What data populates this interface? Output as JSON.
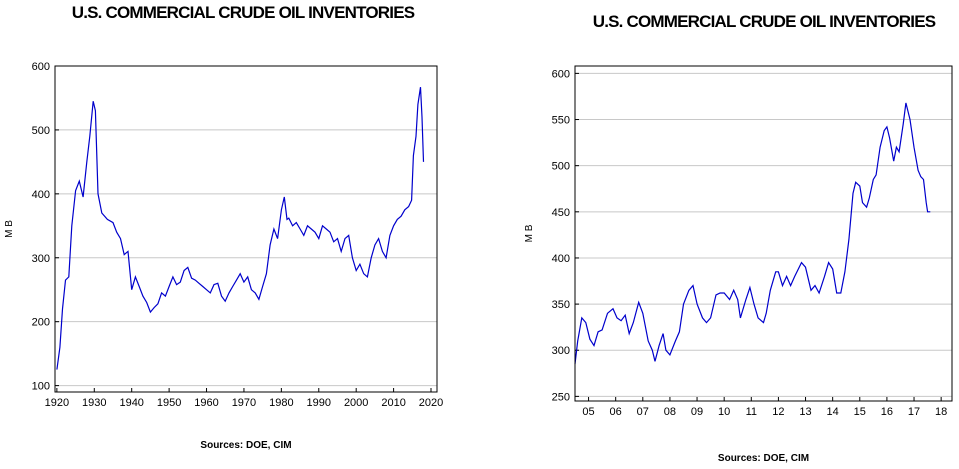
{
  "chart_data": [
    {
      "type": "line",
      "title": "U.S. COMMERCIAL CRUDE OIL INVENTORIES",
      "y_label": "M B",
      "source": "Sources:  DOE, CIM",
      "xlim": [
        1919.5,
        2021.6
      ],
      "xticks": [
        1920,
        1930,
        1940,
        1950,
        1960,
        1970,
        1980,
        1990,
        2000,
        2010,
        2020
      ],
      "ylim": [
        90,
        600
      ],
      "yticks": [
        100,
        200,
        300,
        400,
        500,
        600
      ],
      "grid": true,
      "series": [
        {
          "name": "Crude oil inventories",
          "color": "#0000cc",
          "x": [
            1920,
            1920.8,
            1921.5,
            1922.3,
            1923.2,
            1924,
            1925,
            1926,
            1927,
            1928,
            1928.8,
            1929.7,
            1930.3,
            1931,
            1932,
            1933.5,
            1935,
            1936,
            1937,
            1938,
            1939,
            1940,
            1941,
            1942,
            1943,
            1944,
            1945,
            1946,
            1947,
            1948,
            1949,
            1950,
            1951,
            1952,
            1953,
            1954,
            1955,
            1956,
            1957,
            1958,
            1959,
            1960,
            1961,
            1962,
            1963,
            1964,
            1965,
            1966,
            1967,
            1968,
            1969,
            1970,
            1971,
            1972,
            1973,
            1974,
            1975,
            1976,
            1977,
            1978,
            1979,
            1980,
            1980.8,
            1981.5,
            1982,
            1983,
            1984,
            1985,
            1986,
            1987,
            1988,
            1989,
            1990,
            1991,
            1992,
            1993,
            1994,
            1995,
            1996,
            1997,
            1998,
            1999,
            2000,
            2001,
            2002,
            2003,
            2004,
            2005,
            2006,
            2007,
            2008,
            2009,
            2010,
            2011,
            2012,
            2013,
            2014,
            2014.8,
            2015.3,
            2016,
            2016.5,
            2017.2,
            2017.6,
            2018
          ],
          "values": [
            125,
            160,
            220,
            265,
            270,
            350,
            405,
            420,
            395,
            450,
            490,
            545,
            530,
            400,
            370,
            360,
            355,
            340,
            330,
            305,
            310,
            250,
            270,
            255,
            240,
            230,
            215,
            222,
            228,
            245,
            240,
            255,
            270,
            258,
            262,
            280,
            285,
            268,
            265,
            260,
            255,
            250,
            245,
            258,
            260,
            240,
            232,
            245,
            255,
            265,
            275,
            262,
            270,
            250,
            245,
            235,
            255,
            275,
            320,
            345,
            330,
            375,
            395,
            360,
            362,
            350,
            355,
            345,
            335,
            350,
            345,
            340,
            330,
            350,
            345,
            340,
            325,
            330,
            310,
            330,
            335,
            300,
            280,
            290,
            275,
            270,
            300,
            320,
            330,
            310,
            300,
            335,
            350,
            360,
            365,
            375,
            380,
            390,
            460,
            490,
            540,
            567,
            520,
            450
          ]
        }
      ]
    },
    {
      "type": "line",
      "title": "U.S. COMMERCIAL CRUDE OIL INVENTORIES",
      "y_label": "M B",
      "source": "Sources:  DOE, CIM",
      "xlim": [
        2005,
        2018.9
      ],
      "xticks": [
        {
          "value": 2005.5,
          "label": "05"
        },
        {
          "value": 2006.5,
          "label": "06"
        },
        {
          "value": 2007.5,
          "label": "07"
        },
        {
          "value": 2008.5,
          "label": "08"
        },
        {
          "value": 2009.5,
          "label": "09"
        },
        {
          "value": 2010.5,
          "label": "10"
        },
        {
          "value": 2011.5,
          "label": "11"
        },
        {
          "value": 2012.5,
          "label": "12"
        },
        {
          "value": 2013.5,
          "label": "13"
        },
        {
          "value": 2014.5,
          "label": "14"
        },
        {
          "value": 2015.5,
          "label": "15"
        },
        {
          "value": 2016.5,
          "label": "16"
        },
        {
          "value": 2017.5,
          "label": "17"
        },
        {
          "value": 2018.5,
          "label": "18"
        }
      ],
      "ylim": [
        245,
        608
      ],
      "yticks": [
        250,
        300,
        350,
        400,
        450,
        500,
        550,
        600
      ],
      "grid": true,
      "series": [
        {
          "name": "Crude oil inventories",
          "color": "#0000cc",
          "x": [
            2005.0,
            2005.1,
            2005.25,
            2005.4,
            2005.55,
            2005.7,
            2005.85,
            2006.0,
            2006.2,
            2006.4,
            2006.55,
            2006.7,
            2006.85,
            2007.0,
            2007.15,
            2007.35,
            2007.5,
            2007.7,
            2007.85,
            2007.95,
            2008.1,
            2008.25,
            2008.35,
            2008.5,
            2008.7,
            2008.85,
            2009.0,
            2009.2,
            2009.35,
            2009.5,
            2009.7,
            2009.85,
            2010.0,
            2010.2,
            2010.35,
            2010.5,
            2010.7,
            2010.85,
            2011.0,
            2011.1,
            2011.3,
            2011.45,
            2011.6,
            2011.75,
            2011.95,
            2012.05,
            2012.2,
            2012.4,
            2012.5,
            2012.65,
            2012.8,
            2012.95,
            2013.1,
            2013.35,
            2013.5,
            2013.7,
            2013.85,
            2014.0,
            2014.2,
            2014.35,
            2014.5,
            2014.65,
            2014.8,
            2014.95,
            2015.1,
            2015.25,
            2015.35,
            2015.5,
            2015.6,
            2015.75,
            2015.85,
            2016.0,
            2016.1,
            2016.25,
            2016.4,
            2016.5,
            2016.6,
            2016.75,
            2016.85,
            2016.95,
            2017.1,
            2017.2,
            2017.35,
            2017.5,
            2017.65,
            2017.75,
            2017.85,
            2017.95,
            2018.0,
            2018.1
          ],
          "values": [
            285,
            310,
            335,
            330,
            312,
            305,
            320,
            322,
            340,
            345,
            335,
            332,
            338,
            318,
            330,
            352,
            340,
            310,
            300,
            288,
            305,
            318,
            300,
            295,
            310,
            320,
            350,
            365,
            370,
            350,
            335,
            330,
            335,
            360,
            362,
            362,
            355,
            365,
            355,
            335,
            355,
            368,
            350,
            335,
            330,
            340,
            365,
            385,
            385,
            370,
            380,
            370,
            380,
            395,
            390,
            365,
            370,
            362,
            380,
            395,
            388,
            362,
            362,
            385,
            420,
            470,
            482,
            478,
            460,
            455,
            465,
            485,
            490,
            520,
            538,
            542,
            530,
            505,
            520,
            515,
            545,
            568,
            550,
            520,
            495,
            488,
            485,
            460,
            450,
            450
          ]
        }
      ]
    }
  ]
}
